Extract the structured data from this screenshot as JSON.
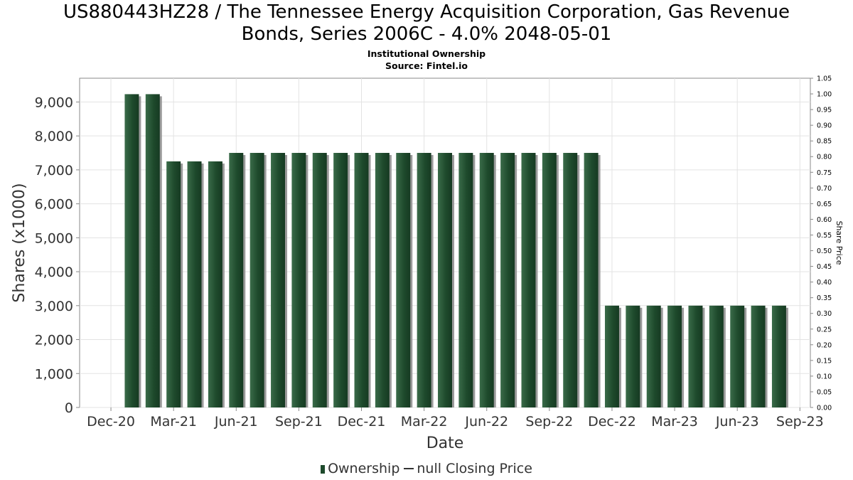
{
  "chart_data": {
    "type": "bar",
    "title_line1": "US880443HZ28 / The Tennessee Energy Acquisition Corporation, Gas Revenue",
    "title_line2": "Bonds, Series 2006C - 4.0% 2048-05-01",
    "subtitle": "Institutional Ownership",
    "source": "Source: Fintel.io",
    "xlabel": "Date",
    "ylabel": "Shares (x1000)",
    "y2label": "Share Price",
    "ylim": [
      0,
      9700
    ],
    "y2lim": [
      0,
      1.05
    ],
    "y_ticks": [
      "0",
      "1,000",
      "2,000",
      "3,000",
      "4,000",
      "5,000",
      "6,000",
      "7,000",
      "8,000",
      "9,000"
    ],
    "y_tick_values": [
      0,
      1000,
      2000,
      3000,
      4000,
      5000,
      6000,
      7000,
      8000,
      9000
    ],
    "y2_ticks": [
      "0.00",
      "0.05",
      "0.10",
      "0.15",
      "0.20",
      "0.25",
      "0.30",
      "0.35",
      "0.40",
      "0.45",
      "0.50",
      "0.55",
      "0.60",
      "0.65",
      "0.70",
      "0.75",
      "0.80",
      "0.85",
      "0.90",
      "0.95",
      "1.00",
      "1.05"
    ],
    "y2_tick_values": [
      0,
      0.05,
      0.1,
      0.15,
      0.2,
      0.25,
      0.3,
      0.35,
      0.4,
      0.45,
      0.5,
      0.55,
      0.6,
      0.65,
      0.7,
      0.75,
      0.8,
      0.85,
      0.9,
      0.95,
      1.0,
      1.05
    ],
    "x_ticks": [
      "Dec-20",
      "Mar-21",
      "Jun-21",
      "Sep-21",
      "Dec-21",
      "Mar-22",
      "Jun-22",
      "Sep-22",
      "Dec-22",
      "Mar-23",
      "Jun-23",
      "Sep-23"
    ],
    "values": [
      9230,
      9230,
      7250,
      7250,
      7250,
      7500,
      7500,
      7500,
      7500,
      7500,
      7500,
      7500,
      7500,
      7500,
      7500,
      7500,
      7500,
      7500,
      7500,
      7500,
      7500,
      7500,
      7500,
      3000,
      3000,
      3000,
      3000,
      3000,
      3000,
      3000,
      3000,
      3000
    ],
    "series": [
      {
        "name": "Ownership",
        "color": "#1e4a2c"
      },
      {
        "name": "null Closing Price",
        "color": "#333333"
      }
    ]
  },
  "legend": {
    "ownership_label": "Ownership",
    "price_label": "null Closing Price"
  },
  "colors": {
    "bar": "#1e4a2c",
    "bar_highlight": "#3a6b49",
    "bar_shadow": "#9a9a9a",
    "grid": "#e3e3e3"
  }
}
